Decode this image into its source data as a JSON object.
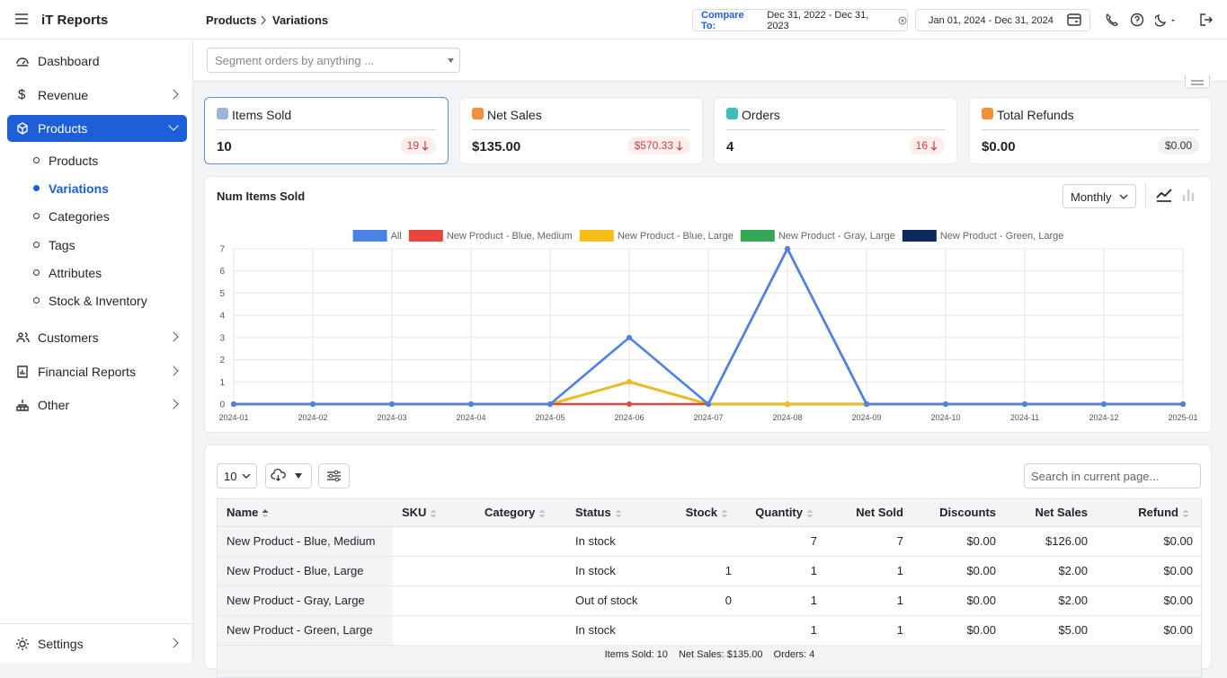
{
  "app": {
    "title": "iT Reports"
  },
  "breadcrumb": [
    "Products",
    "Variations"
  ],
  "compare": {
    "label": "Compare To:",
    "range": "Dec 31, 2022 - Dec 31, 2023"
  },
  "date_range": "Jan 01, 2024 - Dec 31, 2024",
  "sidebar": {
    "top": [
      "Dashboard",
      "Revenue",
      "Products"
    ],
    "revenue_icon": "$",
    "sub": [
      "Products",
      "Variations",
      "Categories",
      "Tags",
      "Attributes",
      "Stock & Inventory"
    ],
    "bottom": [
      "Customers",
      "Financial Reports",
      "Other"
    ],
    "settings": "Settings"
  },
  "segment_placeholder": "Segment orders by anything ...",
  "cards": [
    {
      "label": "Items Sold",
      "value": "10",
      "change": "19",
      "color": "#9bb5d6"
    },
    {
      "label": "Net Sales",
      "value": "$135.00",
      "change": "$570.33",
      "color": "#f0913a"
    },
    {
      "label": "Orders",
      "value": "4",
      "change": "16",
      "color": "#3cbfb9"
    },
    {
      "label": "Total Refunds",
      "value": "$0.00",
      "change": "$0.00",
      "color": "#f0913a"
    }
  ],
  "chart_data": {
    "type": "line",
    "title": "Num Items Sold",
    "interval": "Monthly",
    "x": [
      "2024-01",
      "2024-02",
      "2024-03",
      "2024-04",
      "2024-05",
      "2024-06",
      "2024-07",
      "2024-08",
      "2024-09",
      "2024-10",
      "2024-11",
      "2024-12",
      "2025-01"
    ],
    "series": [
      {
        "name": "All",
        "color": "#4a82e6",
        "values": [
          0,
          0,
          0,
          0,
          0,
          3,
          0,
          7,
          0,
          0,
          0,
          0,
          0
        ]
      },
      {
        "name": "New Product - Blue, Medium",
        "color": "#e8453c",
        "values": [
          0,
          0,
          0,
          0,
          0,
          0,
          0,
          7,
          0,
          0,
          0,
          0,
          0
        ]
      },
      {
        "name": "New Product - Blue, Large",
        "color": "#f6bd16",
        "values": [
          0,
          0,
          0,
          0,
          0,
          1,
          0,
          0,
          0,
          0,
          0,
          0,
          0
        ]
      },
      {
        "name": "New Product - Gray, Large",
        "color": "#34a853",
        "values": [
          0,
          0,
          0,
          0,
          0,
          1,
          0,
          0,
          0,
          0,
          0,
          0,
          0
        ]
      },
      {
        "name": "New Product - Green, Large",
        "color": "#0b2a5c",
        "values": [
          0,
          0,
          0,
          0,
          0,
          1,
          0,
          0,
          0,
          0,
          0,
          0,
          0
        ]
      }
    ],
    "ylim": [
      0,
      7
    ],
    "yticks": [
      0,
      1,
      2,
      3,
      4,
      5,
      6,
      7
    ],
    "grid": true
  },
  "table": {
    "page_size": "10",
    "search_placeholder": "Search in current page...",
    "columns": [
      "Name",
      "SKU",
      "Category",
      "Status",
      "Stock",
      "Quantity",
      "Net Sold",
      "Discounts",
      "Net Sales",
      "Refund"
    ],
    "rows": [
      [
        "New Product - Blue, Medium",
        null,
        null,
        "In stock",
        null,
        "7",
        "7",
        "$0.00",
        "$126.00",
        "$0.00"
      ],
      [
        "New Product - Blue, Large",
        null,
        null,
        "In stock",
        "1",
        "1",
        "1",
        "$0.00",
        "$2.00",
        "$0.00"
      ],
      [
        "New Product - Gray, Large",
        null,
        null,
        "Out of stock",
        "0",
        "1",
        "1",
        "$0.00",
        "$2.00",
        "$0.00"
      ],
      [
        "New Product - Green, Large",
        null,
        null,
        "In stock",
        null,
        "1",
        "1",
        "$0.00",
        "$5.00",
        "$0.00"
      ]
    ],
    "footer": [
      "Items Sold: 10",
      "Net Sales: $135.00",
      "Orders: 4"
    ]
  }
}
